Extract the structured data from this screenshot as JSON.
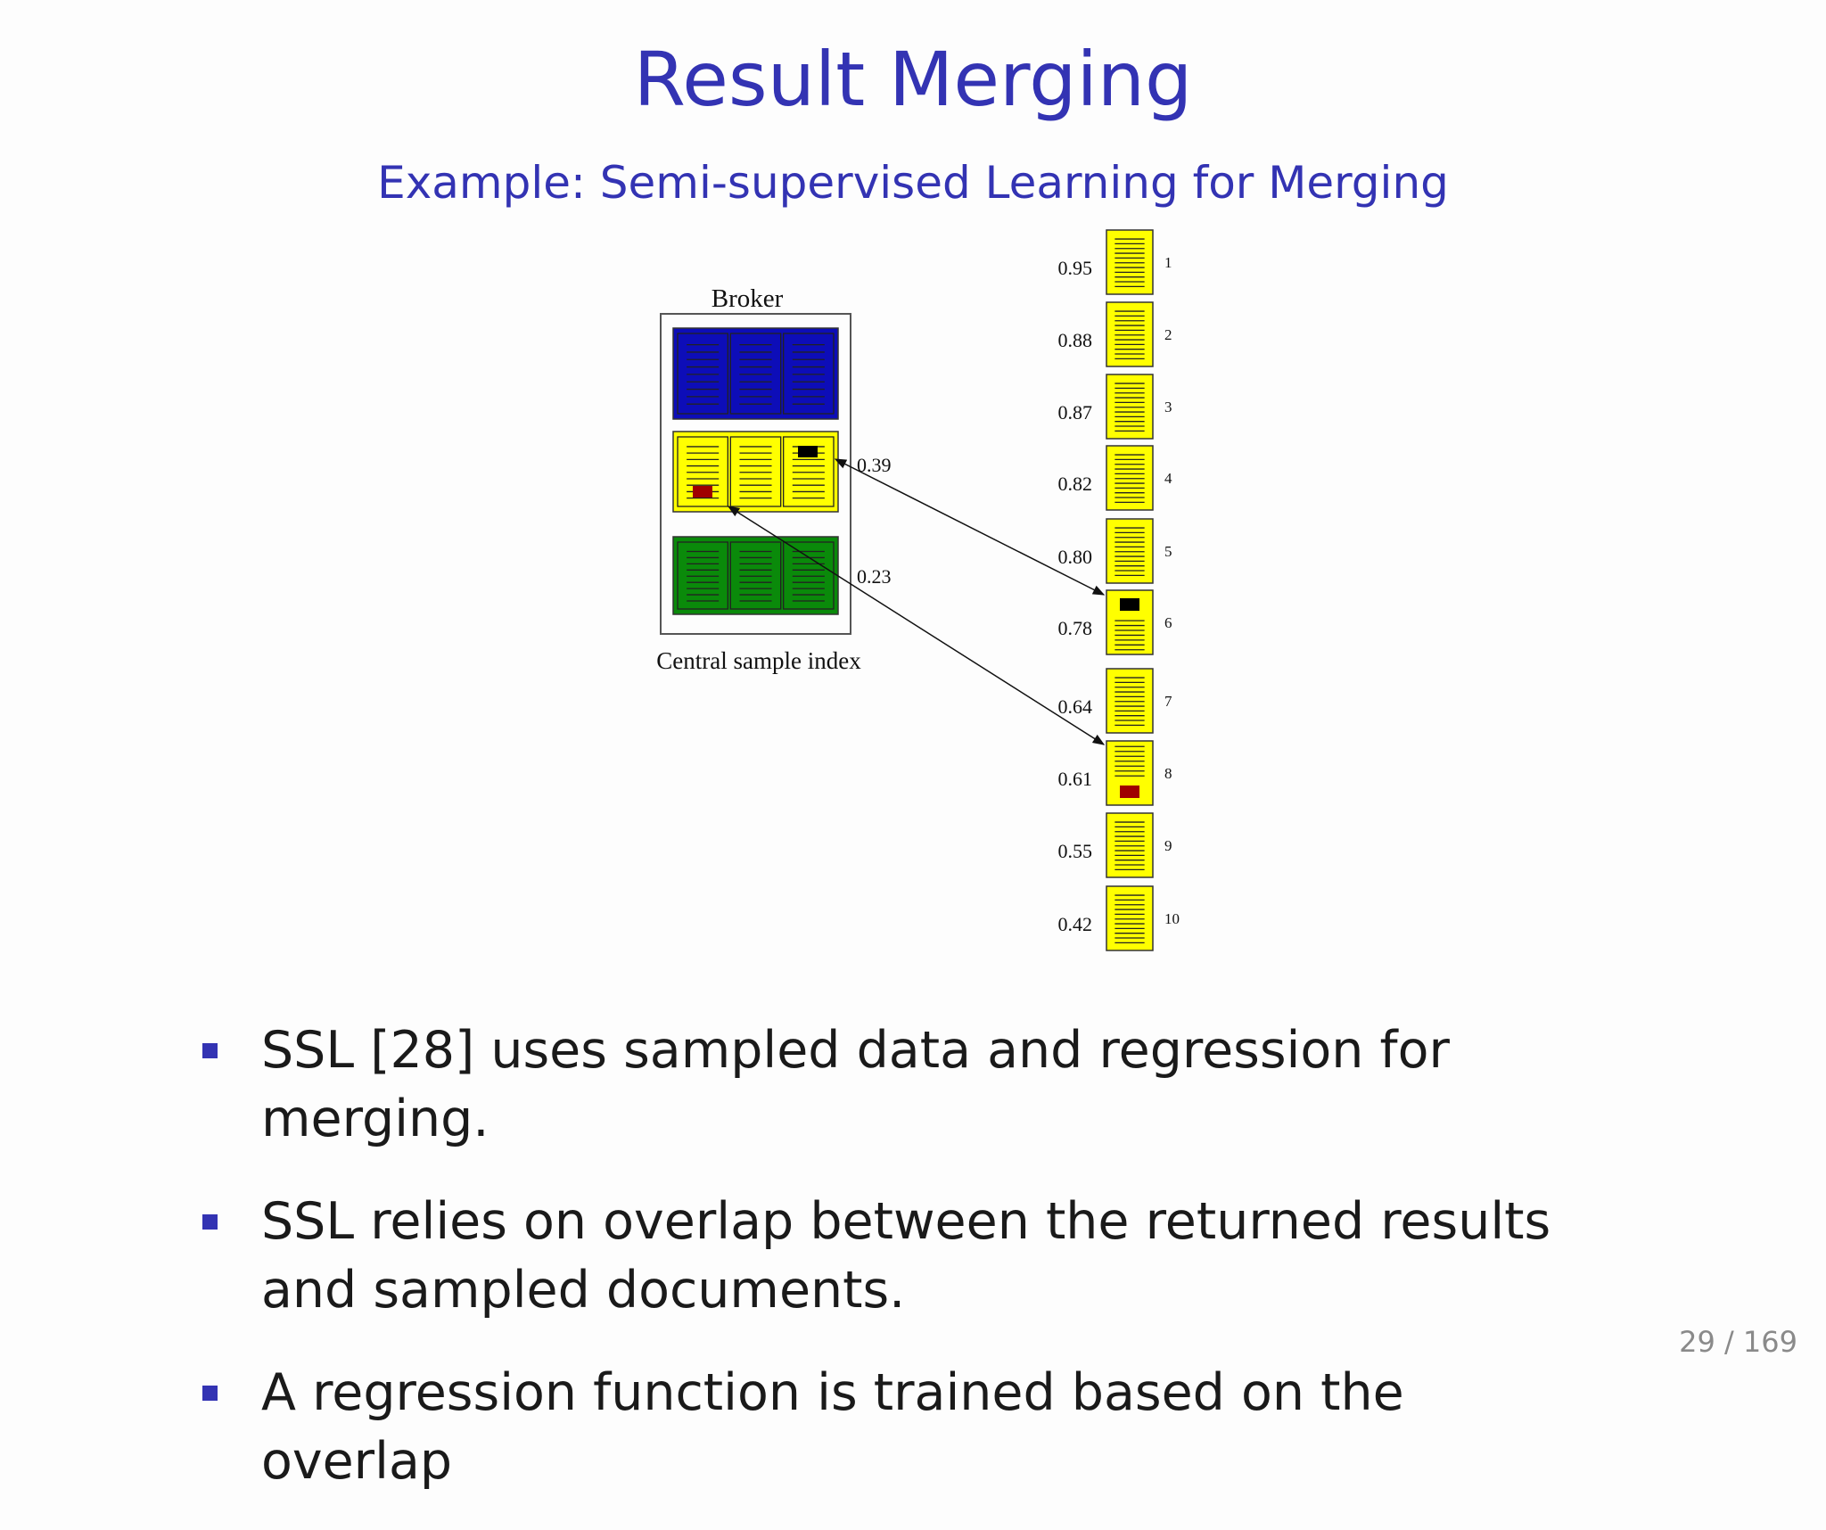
{
  "slide": {
    "title": "Result Merging",
    "subtitle": "Example: Semi-supervised Learning for Merging",
    "page_number": "29 / 169"
  },
  "diagram": {
    "broker_label": "Broker",
    "csi_label": "Central sample index",
    "csi_groups": [
      {
        "color": "#0d0db8"
      },
      {
        "color": "#ffff00"
      },
      {
        "color": "#0a8a0a"
      }
    ],
    "mapping_scores": [
      "0.39",
      "0.23"
    ],
    "results": [
      {
        "rank": "1",
        "score": "0.95"
      },
      {
        "rank": "2",
        "score": "0.88"
      },
      {
        "rank": "3",
        "score": "0.87"
      },
      {
        "rank": "4",
        "score": "0.82"
      },
      {
        "rank": "5",
        "score": "0.80"
      },
      {
        "rank": "6",
        "score": "0.78"
      },
      {
        "rank": "7",
        "score": "0.64"
      },
      {
        "rank": "8",
        "score": "0.61"
      },
      {
        "rank": "9",
        "score": "0.55"
      },
      {
        "rank": "10",
        "score": "0.42"
      }
    ]
  },
  "bullets": [
    "SSL [28] uses sampled data and regression for merging.",
    "SSL relies on overlap between the returned results and sampled documents.",
    "A regression function is trained based on the overlap"
  ]
}
